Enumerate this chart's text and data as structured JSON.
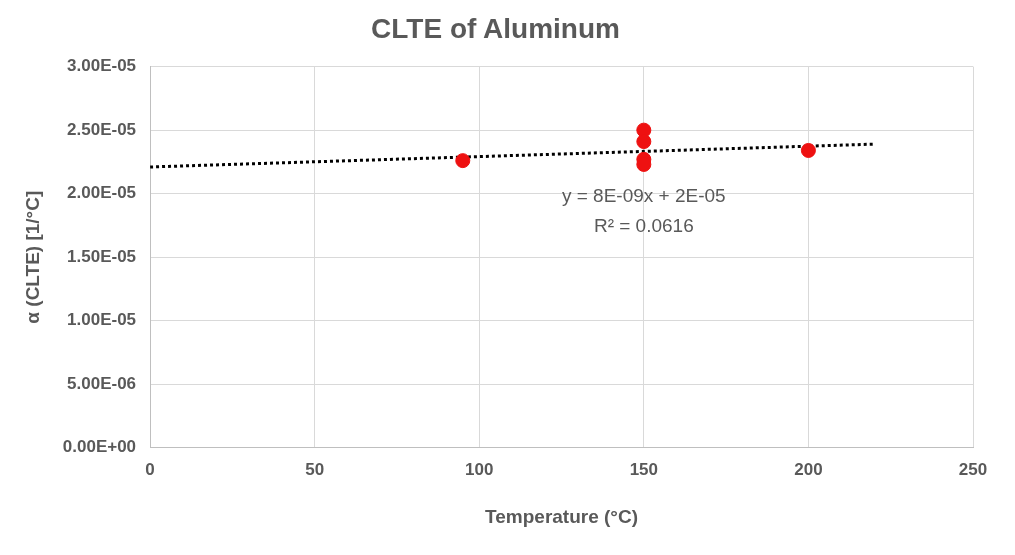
{
  "chart_data": {
    "type": "scatter",
    "title": "CLTE of Aluminum",
    "xlabel": "Temperature (°C)",
    "ylabel": "α (CLTE) [1/°C]",
    "series": [
      {
        "type": "scatter",
        "color": "#ee1111",
        "x": [
          95,
          150,
          150,
          150,
          150,
          200
        ],
        "values": [
          2.26e-05,
          2.5e-05,
          2.41e-05,
          2.27e-05,
          2.23e-05,
          2.34e-05
        ],
        "marker": "circle"
      },
      {
        "type": "line",
        "color": "#000000",
        "x": [
          0,
          220
        ],
        "values": [
          2.21e-05,
          2.39e-05
        ],
        "line_style": "dotted",
        "marker": "none"
      }
    ],
    "xlim": [
      0,
      250
    ],
    "xticks": [
      0,
      50,
      100,
      150,
      200,
      250
    ],
    "ylim": [
      0,
      3e-05
    ],
    "yticks": [
      {
        "value": 0,
        "label": "0.00E+00"
      },
      {
        "value": 5e-06,
        "label": "5.00E-06"
      },
      {
        "value": 1e-05,
        "label": "1.00E-05"
      },
      {
        "value": 1.5e-05,
        "label": "1.50E-05"
      },
      {
        "value": 2e-05,
        "label": "2.00E-05"
      },
      {
        "value": 2.5e-05,
        "label": "2.50E-05"
      },
      {
        "value": 3e-05,
        "label": "3.00E-05"
      }
    ],
    "grid": true,
    "legend": false,
    "annotations": [
      "y = 8E-09x + 2E-05",
      "R² = 0.0616"
    ]
  }
}
